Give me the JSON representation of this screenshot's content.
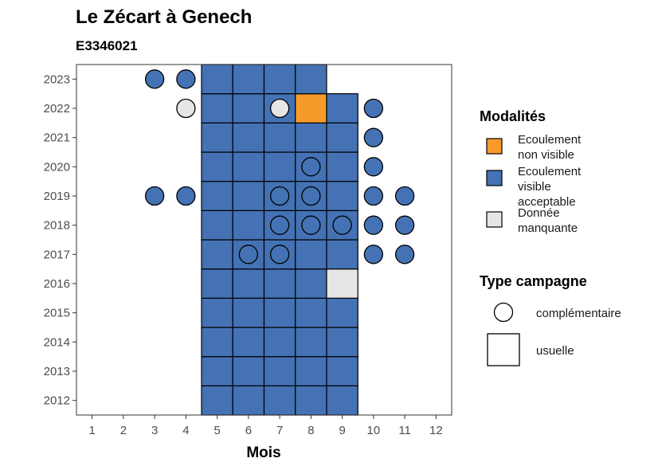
{
  "chart_data": {
    "type": "heatmap",
    "title": "Le Zécart à Genech",
    "subtitle": "E3346021",
    "xlabel": "Mois",
    "ylabel": "",
    "x_ticks": [
      1,
      2,
      3,
      4,
      5,
      6,
      7,
      8,
      9,
      10,
      11,
      12
    ],
    "y_ticks": [
      2012,
      2013,
      2014,
      2015,
      2016,
      2017,
      2018,
      2019,
      2020,
      2021,
      2022,
      2023
    ],
    "xlim": [
      0.5,
      12.5
    ],
    "ylim": [
      2011.5,
      2023.5
    ],
    "colors": {
      "Ecoulement non visible": "#F79A2C",
      "Ecoulement visible acceptable": "#4472B4",
      "Donnée manquante": "#E6E6E6"
    },
    "legend_modalites": {
      "title": "Modalités",
      "entries": [
        {
          "key": "Ecoulement non visible",
          "lines": [
            "Ecoulement",
            "non visible"
          ]
        },
        {
          "key": "Ecoulement visible acceptable",
          "lines": [
            "Ecoulement",
            "visible",
            "acceptable"
          ]
        },
        {
          "key": "Donnée manquante",
          "lines": [
            "Donnée",
            "manquante"
          ]
        }
      ]
    },
    "legend_type": {
      "title": "Type campagne",
      "entries": [
        {
          "shape": "circle",
          "label": "complémentaire"
        },
        {
          "shape": "square",
          "label": "usuelle"
        }
      ]
    },
    "squares": [
      {
        "year": 2012,
        "month": 5,
        "value": "Ecoulement visible acceptable"
      },
      {
        "year": 2012,
        "month": 6,
        "value": "Ecoulement visible acceptable"
      },
      {
        "year": 2012,
        "month": 7,
        "value": "Ecoulement visible acceptable"
      },
      {
        "year": 2012,
        "month": 8,
        "value": "Ecoulement visible acceptable"
      },
      {
        "year": 2012,
        "month": 9,
        "value": "Ecoulement visible acceptable"
      },
      {
        "year": 2013,
        "month": 5,
        "value": "Ecoulement visible acceptable"
      },
      {
        "year": 2013,
        "month": 6,
        "value": "Ecoulement visible acceptable"
      },
      {
        "year": 2013,
        "month": 7,
        "value": "Ecoulement visible acceptable"
      },
      {
        "year": 2013,
        "month": 8,
        "value": "Ecoulement visible acceptable"
      },
      {
        "year": 2013,
        "month": 9,
        "value": "Ecoulement visible acceptable"
      },
      {
        "year": 2014,
        "month": 5,
        "value": "Ecoulement visible acceptable"
      },
      {
        "year": 2014,
        "month": 6,
        "value": "Ecoulement visible acceptable"
      },
      {
        "year": 2014,
        "month": 7,
        "value": "Ecoulement visible acceptable"
      },
      {
        "year": 2014,
        "month": 8,
        "value": "Ecoulement visible acceptable"
      },
      {
        "year": 2014,
        "month": 9,
        "value": "Ecoulement visible acceptable"
      },
      {
        "year": 2015,
        "month": 5,
        "value": "Ecoulement visible acceptable"
      },
      {
        "year": 2015,
        "month": 6,
        "value": "Ecoulement visible acceptable"
      },
      {
        "year": 2015,
        "month": 7,
        "value": "Ecoulement visible acceptable"
      },
      {
        "year": 2015,
        "month": 8,
        "value": "Ecoulement visible acceptable"
      },
      {
        "year": 2015,
        "month": 9,
        "value": "Ecoulement visible acceptable"
      },
      {
        "year": 2016,
        "month": 5,
        "value": "Ecoulement visible acceptable"
      },
      {
        "year": 2016,
        "month": 6,
        "value": "Ecoulement visible acceptable"
      },
      {
        "year": 2016,
        "month": 7,
        "value": "Ecoulement visible acceptable"
      },
      {
        "year": 2016,
        "month": 8,
        "value": "Ecoulement visible acceptable"
      },
      {
        "year": 2016,
        "month": 9,
        "value": "Donnée manquante"
      },
      {
        "year": 2017,
        "month": 5,
        "value": "Ecoulement visible acceptable"
      },
      {
        "year": 2017,
        "month": 6,
        "value": "Ecoulement visible acceptable"
      },
      {
        "year": 2017,
        "month": 7,
        "value": "Ecoulement visible acceptable"
      },
      {
        "year": 2017,
        "month": 8,
        "value": "Ecoulement visible acceptable"
      },
      {
        "year": 2017,
        "month": 9,
        "value": "Ecoulement visible acceptable"
      },
      {
        "year": 2018,
        "month": 5,
        "value": "Ecoulement visible acceptable"
      },
      {
        "year": 2018,
        "month": 6,
        "value": "Ecoulement visible acceptable"
      },
      {
        "year": 2018,
        "month": 7,
        "value": "Ecoulement visible acceptable"
      },
      {
        "year": 2018,
        "month": 8,
        "value": "Ecoulement visible acceptable"
      },
      {
        "year": 2018,
        "month": 9,
        "value": "Ecoulement visible acceptable"
      },
      {
        "year": 2019,
        "month": 5,
        "value": "Ecoulement visible acceptable"
      },
      {
        "year": 2019,
        "month": 6,
        "value": "Ecoulement visible acceptable"
      },
      {
        "year": 2019,
        "month": 7,
        "value": "Ecoulement visible acceptable"
      },
      {
        "year": 2019,
        "month": 8,
        "value": "Ecoulement visible acceptable"
      },
      {
        "year": 2019,
        "month": 9,
        "value": "Ecoulement visible acceptable"
      },
      {
        "year": 2020,
        "month": 5,
        "value": "Ecoulement visible acceptable"
      },
      {
        "year": 2020,
        "month": 6,
        "value": "Ecoulement visible acceptable"
      },
      {
        "year": 2020,
        "month": 7,
        "value": "Ecoulement visible acceptable"
      },
      {
        "year": 2020,
        "month": 8,
        "value": "Ecoulement visible acceptable"
      },
      {
        "year": 2020,
        "month": 9,
        "value": "Ecoulement visible acceptable"
      },
      {
        "year": 2021,
        "month": 5,
        "value": "Ecoulement visible acceptable"
      },
      {
        "year": 2021,
        "month": 6,
        "value": "Ecoulement visible acceptable"
      },
      {
        "year": 2021,
        "month": 7,
        "value": "Ecoulement visible acceptable"
      },
      {
        "year": 2021,
        "month": 8,
        "value": "Ecoulement visible acceptable"
      },
      {
        "year": 2021,
        "month": 9,
        "value": "Ecoulement visible acceptable"
      },
      {
        "year": 2022,
        "month": 5,
        "value": "Ecoulement visible acceptable"
      },
      {
        "year": 2022,
        "month": 6,
        "value": "Ecoulement visible acceptable"
      },
      {
        "year": 2022,
        "month": 7,
        "value": "Ecoulement visible acceptable"
      },
      {
        "year": 2022,
        "month": 8,
        "value": "Ecoulement non visible"
      },
      {
        "year": 2022,
        "month": 9,
        "value": "Ecoulement visible acceptable"
      },
      {
        "year": 2023,
        "month": 5,
        "value": "Ecoulement visible acceptable"
      },
      {
        "year": 2023,
        "month": 6,
        "value": "Ecoulement visible acceptable"
      },
      {
        "year": 2023,
        "month": 7,
        "value": "Ecoulement visible acceptable"
      },
      {
        "year": 2023,
        "month": 8,
        "value": "Ecoulement visible acceptable"
      }
    ],
    "circles": [
      {
        "year": 2023,
        "month": 3,
        "value": "Ecoulement visible acceptable"
      },
      {
        "year": 2023,
        "month": 4,
        "value": "Ecoulement visible acceptable"
      },
      {
        "year": 2022,
        "month": 4,
        "value": "Donnée manquante"
      },
      {
        "year": 2022,
        "month": 7,
        "value": "Donnée manquante"
      },
      {
        "year": 2022,
        "month": 10,
        "value": "Ecoulement visible acceptable"
      },
      {
        "year": 2021,
        "month": 10,
        "value": "Ecoulement visible acceptable"
      },
      {
        "year": 2020,
        "month": 8,
        "value": "Ecoulement visible acceptable"
      },
      {
        "year": 2020,
        "month": 10,
        "value": "Ecoulement visible acceptable"
      },
      {
        "year": 2019,
        "month": 3,
        "value": "Ecoulement visible acceptable"
      },
      {
        "year": 2019,
        "month": 4,
        "value": "Ecoulement visible acceptable"
      },
      {
        "year": 2019,
        "month": 7,
        "value": "Ecoulement visible acceptable"
      },
      {
        "year": 2019,
        "month": 8,
        "value": "Ecoulement visible acceptable"
      },
      {
        "year": 2019,
        "month": 10,
        "value": "Ecoulement visible acceptable"
      },
      {
        "year": 2019,
        "month": 11,
        "value": "Ecoulement visible acceptable"
      },
      {
        "year": 2018,
        "month": 7,
        "value": "Ecoulement visible acceptable"
      },
      {
        "year": 2018,
        "month": 8,
        "value": "Ecoulement visible acceptable"
      },
      {
        "year": 2018,
        "month": 9,
        "value": "Ecoulement visible acceptable"
      },
      {
        "year": 2018,
        "month": 10,
        "value": "Ecoulement visible acceptable"
      },
      {
        "year": 2018,
        "month": 11,
        "value": "Ecoulement visible acceptable"
      },
      {
        "year": 2017,
        "month": 6,
        "value": "Ecoulement visible acceptable"
      },
      {
        "year": 2017,
        "month": 7,
        "value": "Ecoulement visible acceptable"
      },
      {
        "year": 2017,
        "month": 10,
        "value": "Ecoulement visible acceptable"
      },
      {
        "year": 2017,
        "month": 11,
        "value": "Ecoulement visible acceptable"
      }
    ]
  }
}
